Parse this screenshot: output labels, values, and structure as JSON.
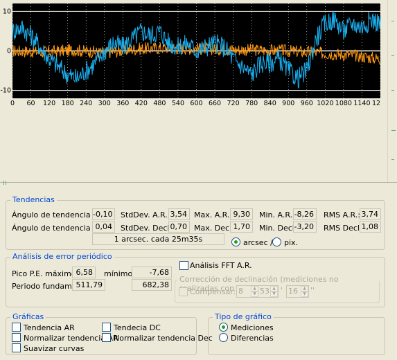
{
  "chart_data": {
    "type": "line",
    "x_ticks": [
      "0",
      "60",
      "120",
      "180",
      "240",
      "300",
      "360",
      "420",
      "480",
      "540",
      "600",
      "660",
      "720",
      "780",
      "840",
      "900",
      "960",
      "1020",
      "1080",
      "1140",
      "12"
    ],
    "y_ticks": [
      "10",
      "0",
      "-10"
    ],
    "ylim": [
      -12,
      12
    ],
    "xlim": [
      0,
      1200
    ],
    "series": [
      {
        "color": "#1ab0f0",
        "x": [
          0,
          30,
          60,
          90,
          120,
          150,
          180,
          210,
          240,
          270,
          300,
          330,
          360,
          390,
          420,
          450,
          480,
          510,
          540,
          570,
          600,
          630,
          660,
          690,
          720,
          750,
          780,
          810,
          840,
          870,
          900,
          930,
          960,
          990,
          1020,
          1050,
          1080,
          1110,
          1140,
          1170,
          1200
        ],
        "values": [
          5,
          6,
          4,
          1,
          -2,
          -4,
          -6,
          -7,
          -5,
          -3,
          0,
          2,
          1,
          3,
          5,
          4,
          5,
          2,
          1,
          2,
          0,
          1,
          2,
          1,
          -2,
          -4,
          -6,
          -3,
          -3,
          -2,
          -5,
          -7,
          -5,
          3,
          7,
          8,
          5,
          7,
          6,
          8,
          7
        ]
      },
      {
        "color": "#ff9a10",
        "x": [
          0,
          100,
          200,
          300,
          400,
          500,
          600,
          700,
          800,
          900,
          1000,
          1100,
          1200
        ],
        "values": [
          0,
          -0.3,
          0.2,
          -0.5,
          0.5,
          0.8,
          0.6,
          0.4,
          0.2,
          0,
          -0.5,
          -1,
          -2
        ]
      }
    ]
  },
  "tendencias": {
    "title": "Tendencias",
    "ar": {
      "angle_label": "Ángulo de tendencia A.R.:",
      "angle": "-0,10",
      "std_label": "StdDev. A.R.:",
      "std": "3,54",
      "max_label": "Max. A.R.:",
      "max": "9,30",
      "min_label": "Min. A.R.:",
      "min": "-8,26",
      "rms_label": "RMS A.R.:",
      "rms": "3,74"
    },
    "decl": {
      "angle_label": "Ángulo de tendencia Decl.:",
      "angle": "0,04",
      "std_label": "StdDev. Decl.:",
      "std": "0,70",
      "max_label": "Max. Decl.:",
      "max": "1,70",
      "min_label": "Min. Decl.:",
      "min": "-3,20",
      "rms_label": "RMS Decl.:",
      "rms": "1,08"
    },
    "rate": "1 arcsec. cada 25m35s",
    "unit_arcsec": "arcsec /",
    "unit_pix": "pix."
  },
  "analisis": {
    "title": "Análisis de error periódico",
    "pico_label": "Pico P.E. máximo:",
    "pico_max": "6,58",
    "minimo_label": "mínimo:",
    "pico_min": "-7,68",
    "periodo_label": "Periodo fundamental:",
    "periodo": "511,79",
    "periodo2": "682,38",
    "fft_label": "Análisis FFT A.R.",
    "correccion_label": "Corrección de declinación (mediciones no realizadas con EQAlign)",
    "compensar_label": "Compensar:",
    "deg": "8",
    "min": "53",
    "sec": "16",
    "deg_symbol": "º",
    "min_symbol": "'",
    "sec_symbol": "''"
  },
  "graficas": {
    "title": "Gráficas",
    "tendencia_ar": "Tendencia AR",
    "tendencia_dc": "Tendecia DC",
    "norm_ar": "Normalizar tendencia AR",
    "norm_dec": "Normalizar tendencia Dec",
    "suavizar": "Suavizar curvas"
  },
  "tipo": {
    "title": "Tipo de gráfico",
    "mediciones": "Mediciones",
    "diferencias": "Diferencias"
  }
}
